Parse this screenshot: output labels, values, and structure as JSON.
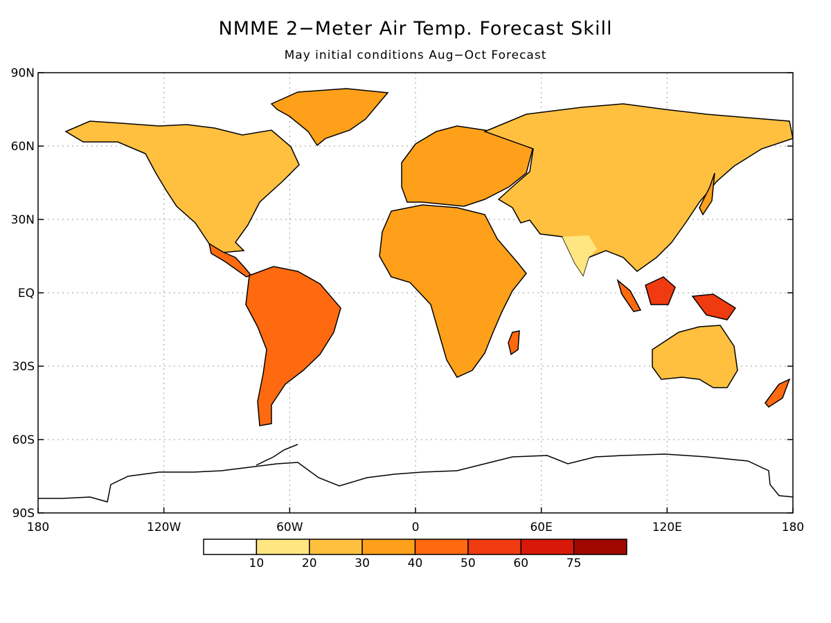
{
  "title": "NMME 2−Meter Air Temp. Forecast Skill",
  "subtitle": "May initial conditions   Aug−Oct Forecast",
  "lat_labels": [
    "90N",
    "60N",
    "30N",
    "EQ",
    "30S",
    "60S",
    "90S"
  ],
  "lon_labels": [
    "180",
    "120W",
    "60W",
    "0",
    "60E",
    "120E",
    "180"
  ],
  "colorbar": {
    "colors": [
      "#ffffff",
      "#ffe680",
      "#ffc040",
      "#ffa01a",
      "#ff6a10",
      "#f03a10",
      "#d81808",
      "#a00800"
    ],
    "labels": [
      "10",
      "20",
      "30",
      "40",
      "50",
      "60",
      "75"
    ]
  }
}
